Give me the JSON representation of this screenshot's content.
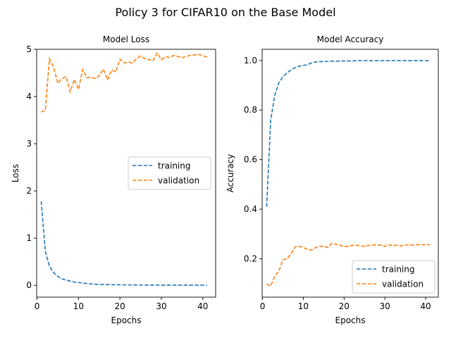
{
  "suptitle": "Policy 3 for CIFAR10 on the Base Model",
  "colors": {
    "training": "#1f77b4",
    "validation": "#ff7f0e"
  },
  "chart_data": [
    {
      "type": "line",
      "title": "Model Loss",
      "xlabel": "Epochs",
      "ylabel": "Loss",
      "xlim": [
        -0.1,
        43.1
      ],
      "ylim": [
        -0.25,
        5.0
      ],
      "xticks": [
        0,
        10,
        20,
        30,
        40
      ],
      "yticks": [
        0,
        1,
        2,
        3,
        4,
        5
      ],
      "grid": false,
      "legend_position": "center-right",
      "series": [
        {
          "name": "training",
          "x": [
            1,
            2,
            3,
            4,
            5,
            6,
            7,
            8,
            9,
            10,
            11,
            12,
            13,
            14,
            15,
            16,
            17,
            18,
            19,
            20,
            21,
            22,
            23,
            24,
            25,
            26,
            27,
            28,
            29,
            30,
            31,
            32,
            33,
            34,
            35,
            36,
            37,
            38,
            39,
            40,
            41
          ],
          "values": [
            1.78,
            0.72,
            0.4,
            0.27,
            0.19,
            0.14,
            0.11,
            0.09,
            0.07,
            0.06,
            0.05,
            0.04,
            0.03,
            0.025,
            0.02,
            0.018,
            0.016,
            0.014,
            0.012,
            0.011,
            0.01,
            0.009,
            0.008,
            0.008,
            0.007,
            0.007,
            0.006,
            0.006,
            0.006,
            0.005,
            0.005,
            0.005,
            0.005,
            0.004,
            0.004,
            0.004,
            0.004,
            0.004,
            0.003,
            0.003,
            0.003
          ]
        },
        {
          "name": "validation",
          "x": [
            1,
            2,
            3,
            4,
            5,
            6,
            7,
            8,
            9,
            10,
            11,
            12,
            13,
            14,
            15,
            16,
            17,
            18,
            19,
            20,
            21,
            22,
            23,
            24,
            25,
            26,
            27,
            28,
            29,
            30,
            31,
            32,
            33,
            34,
            35,
            36,
            37,
            38,
            39,
            40,
            41
          ],
          "values": [
            3.67,
            3.71,
            4.8,
            4.62,
            4.28,
            4.38,
            4.42,
            4.1,
            4.36,
            4.15,
            4.57,
            4.4,
            4.41,
            4.38,
            4.44,
            4.58,
            4.35,
            4.56,
            4.52,
            4.79,
            4.71,
            4.73,
            4.71,
            4.8,
            4.86,
            4.8,
            4.78,
            4.76,
            4.92,
            4.78,
            4.84,
            4.83,
            4.87,
            4.85,
            4.82,
            4.85,
            4.87,
            4.88,
            4.89,
            4.87,
            4.83
          ]
        }
      ]
    },
    {
      "type": "line",
      "title": "Model Accuracy",
      "xlabel": "Epochs",
      "ylabel": "Accuracy",
      "xlim": [
        -0.1,
        43.1
      ],
      "ylim": [
        0.045,
        1.045
      ],
      "xticks": [
        0,
        10,
        20,
        30,
        40
      ],
      "yticks": [
        0.2,
        0.4,
        0.6,
        0.8,
        1.0
      ],
      "grid": false,
      "legend_position": "lower-right",
      "series": [
        {
          "name": "training",
          "x": [
            1,
            2,
            3,
            4,
            5,
            6,
            7,
            8,
            9,
            10,
            11,
            12,
            13,
            14,
            15,
            16,
            17,
            18,
            19,
            20,
            21,
            22,
            23,
            24,
            25,
            26,
            27,
            28,
            29,
            30,
            31,
            32,
            33,
            34,
            35,
            36,
            37,
            38,
            39,
            40,
            41
          ],
          "values": [
            0.41,
            0.76,
            0.86,
            0.91,
            0.935,
            0.95,
            0.962,
            0.971,
            0.977,
            0.98,
            0.983,
            0.99,
            0.994,
            0.995,
            0.996,
            0.996,
            0.997,
            0.997,
            0.998,
            0.998,
            0.998,
            0.998,
            0.999,
            0.999,
            0.999,
            0.999,
            0.999,
            0.999,
            0.999,
            0.999,
            0.999,
            0.999,
            0.999,
            0.999,
            0.999,
            0.999,
            0.999,
            0.999,
            0.999,
            0.999,
            0.999
          ]
        },
        {
          "name": "validation",
          "x": [
            1,
            2,
            3,
            4,
            5,
            6,
            7,
            8,
            9,
            10,
            11,
            12,
            13,
            14,
            15,
            16,
            17,
            18,
            19,
            20,
            21,
            22,
            23,
            24,
            25,
            26,
            27,
            28,
            29,
            30,
            31,
            32,
            33,
            34,
            35,
            36,
            37,
            38,
            39,
            40,
            41
          ],
          "values": [
            0.098,
            0.09,
            0.13,
            0.15,
            0.195,
            0.2,
            0.22,
            0.248,
            0.25,
            0.245,
            0.238,
            0.235,
            0.245,
            0.25,
            0.25,
            0.245,
            0.262,
            0.258,
            0.255,
            0.248,
            0.25,
            0.254,
            0.255,
            0.252,
            0.25,
            0.254,
            0.255,
            0.256,
            0.255,
            0.25,
            0.256,
            0.253,
            0.255,
            0.252,
            0.255,
            0.256,
            0.255,
            0.257,
            0.256,
            0.256,
            0.258
          ]
        }
      ]
    }
  ]
}
